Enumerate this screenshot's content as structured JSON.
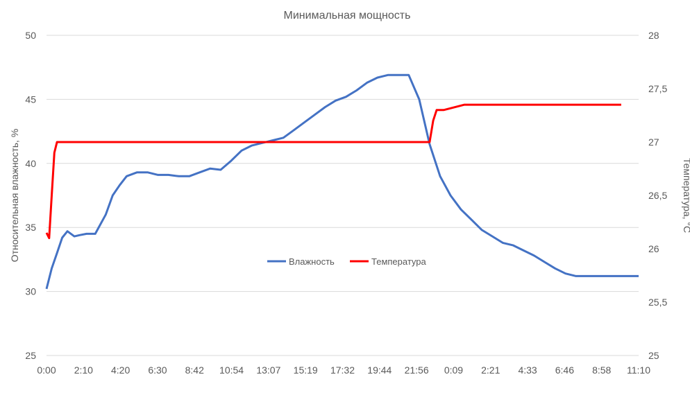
{
  "chart_data": {
    "type": "line",
    "title": "Минимальная мощность",
    "ylabel": "Относительная влажность, %",
    "y2label": "Температура, °C",
    "ylim": [
      25,
      50
    ],
    "y2lim": [
      25,
      28
    ],
    "yticks": [
      "25",
      "30",
      "35",
      "40",
      "45",
      "50"
    ],
    "y2ticks": [
      "25",
      "25,5",
      "26",
      "26,5",
      "27",
      "27,5",
      "28"
    ],
    "grid": true,
    "legend_position": "center",
    "x_categories": [
      "0:00",
      "2:10",
      "4:20",
      "6:30",
      "8:42",
      "10:54",
      "13:07",
      "15:19",
      "17:32",
      "19:44",
      "21:56",
      "0:09",
      "2:21",
      "4:33",
      "6:46",
      "8:58",
      "11:10"
    ],
    "series": [
      {
        "name": "Влажность",
        "axis": "left",
        "color": "#4472C4",
        "x": [
          0,
          0.3,
          0.6,
          0.9,
          1.2,
          1.6,
          1.9,
          2.3,
          2.8,
          3.4,
          3.8,
          4.2,
          4.6,
          5.2,
          5.8,
          6.4,
          7.0,
          7.6,
          8.2,
          8.8,
          9.4,
          10.0,
          10.6,
          11.2,
          11.8,
          12.4,
          13.0,
          13.6,
          14.2,
          14.8,
          15.4,
          16.0,
          16.6,
          17.2,
          17.8,
          18.4,
          19.0,
          19.6,
          20.2,
          20.8,
          21.4,
          22.0,
          22.6,
          23.2,
          23.8,
          24.4,
          25.0,
          25.6,
          26.2,
          26.8,
          27.4,
          28.0,
          28.6,
          29.2,
          29.8,
          30.4,
          31.0,
          31.6,
          32.2,
          32.8,
          33.4,
          34.0
        ],
        "values": [
          30.2,
          31.8,
          33.0,
          34.2,
          34.7,
          34.3,
          34.4,
          34.5,
          34.5,
          36.0,
          37.5,
          38.3,
          39.0,
          39.3,
          39.3,
          39.1,
          39.1,
          39.0,
          39.0,
          39.3,
          39.6,
          39.5,
          40.2,
          41.0,
          41.4,
          41.6,
          41.8,
          42.0,
          42.6,
          43.2,
          43.8,
          44.4,
          44.9,
          45.2,
          45.7,
          46.3,
          46.7,
          46.9,
          46.9,
          46.9,
          45.0,
          41.5,
          39.0,
          37.5,
          36.4,
          35.6,
          34.8,
          34.3,
          33.8,
          33.6,
          33.2,
          32.8,
          32.3,
          31.8,
          31.4,
          31.2,
          31.2,
          31.2,
          31.2,
          31.2,
          31.2,
          31.2
        ]
      },
      {
        "name": "Температура",
        "axis": "right",
        "color": "#FF0000",
        "x": [
          0,
          0.15,
          0.3,
          0.45,
          0.6,
          0.9,
          1.2,
          1.5,
          2.0,
          4.0,
          6.0,
          8.0,
          10.0,
          12.0,
          14.0,
          16.0,
          18.0,
          20.0,
          22.0,
          22.2,
          22.4,
          22.8,
          24.0,
          26.0,
          28.0,
          30.0,
          32.0,
          33.0
        ],
        "values": [
          26.15,
          26.1,
          26.5,
          26.9,
          27.0,
          27.0,
          27.0,
          27.0,
          27.0,
          27.0,
          27.0,
          27.0,
          27.0,
          27.0,
          27.0,
          27.0,
          27.0,
          27.0,
          27.0,
          27.2,
          27.3,
          27.3,
          27.35,
          27.35,
          27.35,
          27.35,
          27.35,
          27.35
        ]
      }
    ]
  }
}
